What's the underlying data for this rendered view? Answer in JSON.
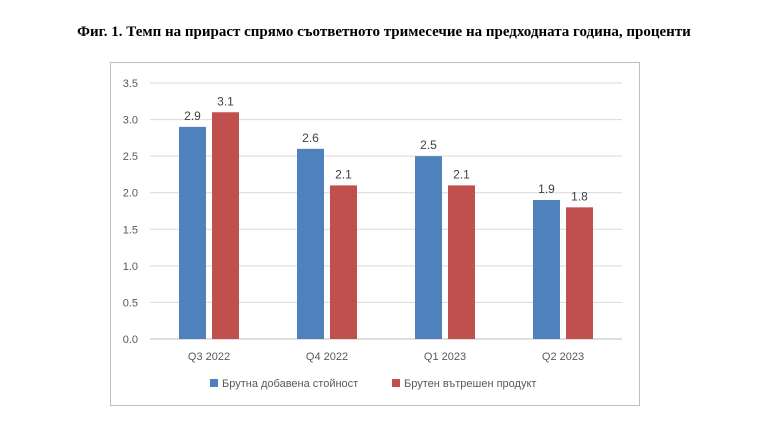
{
  "figure": {
    "title": "Фиг. 1. Темп на прираст спрямо съответното тримесечие на предходната година, проценти"
  },
  "chart_data": {
    "type": "bar",
    "categories": [
      "Q3 2022",
      "Q4 2022",
      "Q1 2023",
      "Q2 2023"
    ],
    "series": [
      {
        "name": "Брутна добавена стойност",
        "values": [
          2.9,
          2.6,
          2.5,
          1.9
        ],
        "labels": [
          "2.9",
          "2.6",
          "2.5",
          "1.9"
        ],
        "color": "#4f81bd"
      },
      {
        "name": "Брутен вътрешен продукт",
        "values": [
          3.1,
          2.1,
          2.1,
          1.8
        ],
        "labels": [
          "3.1",
          "2.1",
          "2.1",
          "1.8"
        ],
        "color": "#c0504d"
      }
    ],
    "ylim": [
      0,
      3.5
    ],
    "yticks": [
      "0.0",
      "0.5",
      "1.0",
      "1.5",
      "2.0",
      "2.5",
      "3.0",
      "3.5"
    ],
    "grid": true,
    "legend": "bottom"
  }
}
